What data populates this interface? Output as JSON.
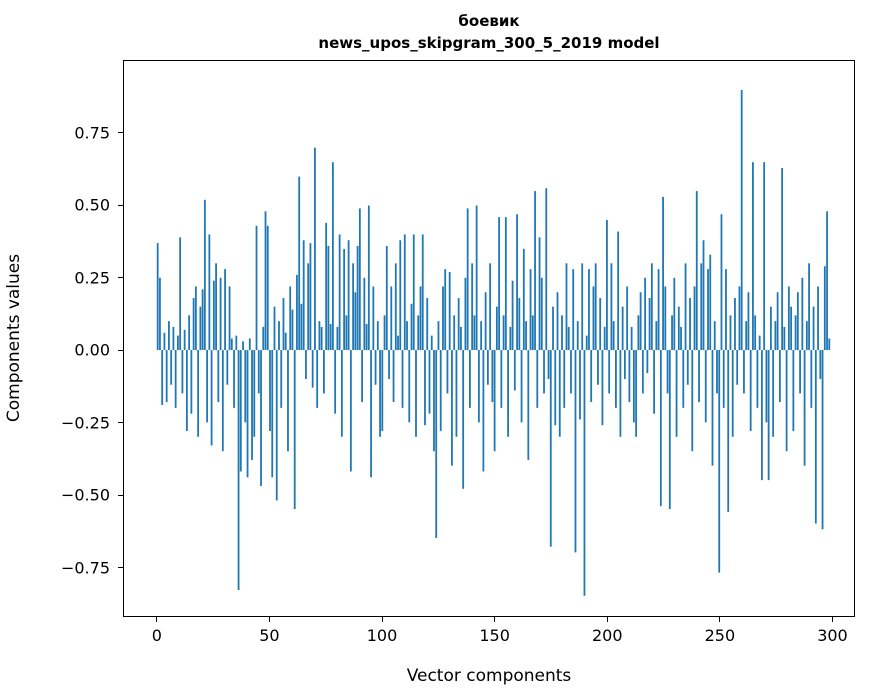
{
  "chart_data": {
    "type": "bar",
    "title_lines": [
      "боевик",
      "news_upos_skipgram_300_5_2019 model"
    ],
    "xlabel": "Vector components",
    "ylabel": "Components values",
    "bar_color": "#1f77b4",
    "grid": false,
    "legend": null,
    "n_components": 300,
    "xlim": [
      -15,
      310
    ],
    "ylim": [
      -0.92,
      1.0
    ],
    "xticks": [
      0,
      50,
      100,
      150,
      200,
      250,
      300
    ],
    "xtick_labels": [
      "0",
      "50",
      "100",
      "150",
      "200",
      "250",
      "300"
    ],
    "yticks": [
      0.75,
      0.5,
      0.25,
      0.0,
      -0.25,
      -0.5,
      -0.75
    ],
    "ytick_labels": [
      "0.75",
      "0.50",
      "0.25",
      "0.00",
      "−0.25",
      "−0.50",
      "−0.75"
    ],
    "values": [
      0.37,
      0.25,
      -0.19,
      0.06,
      -0.18,
      0.1,
      -0.12,
      0.08,
      -0.2,
      0.05,
      0.39,
      -0.15,
      0.07,
      -0.28,
      0.12,
      -0.22,
      0.18,
      0.22,
      -0.3,
      0.15,
      0.21,
      0.52,
      -0.25,
      0.4,
      -0.33,
      0.24,
      0.3,
      -0.18,
      0.25,
      -0.35,
      0.28,
      -0.12,
      0.22,
      0.04,
      -0.2,
      0.05,
      -0.83,
      -0.42,
      0.03,
      -0.25,
      -0.44,
      0.04,
      -0.38,
      -0.3,
      0.43,
      -0.15,
      -0.47,
      0.08,
      0.48,
      0.43,
      -0.28,
      -0.44,
      0.15,
      -0.52,
      0.1,
      -0.2,
      0.18,
      0.06,
      -0.35,
      0.22,
      0.14,
      -0.55,
      0.26,
      0.6,
      0.16,
      0.38,
      -0.1,
      0.3,
      0.37,
      -0.13,
      0.7,
      -0.2,
      0.1,
      0.08,
      -0.15,
      0.44,
      0.36,
      0.09,
      0.65,
      -0.22,
      0.08,
      0.4,
      -0.3,
      0.35,
      0.12,
      0.38,
      -0.42,
      0.3,
      0.2,
      0.36,
      0.49,
      -0.18,
      0.25,
      0.09,
      0.5,
      -0.44,
      0.22,
      -0.12,
      0.1,
      -0.3,
      -0.28,
      0.12,
      0.36,
      -0.1,
      0.22,
      -0.18,
      0.3,
      0.05,
      0.38,
      -0.2,
      0.4,
      0.1,
      -0.25,
      0.16,
      0.4,
      -0.3,
      0.12,
      0.22,
      0.4,
      -0.26,
      0.18,
      -0.22,
      0.05,
      -0.35,
      -0.65,
      0.1,
      -0.28,
      0.22,
      0.28,
      -0.15,
      0.27,
      -0.4,
      0.12,
      -0.3,
      0.18,
      0.08,
      -0.48,
      0.25,
      0.49,
      -0.2,
      0.3,
      0.12,
      0.5,
      -0.25,
      0.1,
      -0.42,
      0.2,
      -0.12,
      0.3,
      -0.18,
      -0.35,
      0.15,
      0.46,
      -0.2,
      0.12,
      0.46,
      -0.3,
      0.08,
      0.24,
      -0.14,
      0.47,
      0.18,
      -0.25,
      0.35,
      0.1,
      -0.38,
      0.28,
      0.12,
      0.55,
      -0.2,
      0.39,
      0.25,
      -0.15,
      0.56,
      -0.1,
      -0.68,
      0.15,
      -0.26,
      0.2,
      -0.3,
      0.12,
      -0.2,
      0.3,
      0.08,
      -0.15,
      0.28,
      -0.7,
      0.1,
      -0.24,
      0.3,
      -0.85,
      0.05,
      0.28,
      -0.18,
      0.22,
      0.3,
      -0.12,
      0.18,
      -0.26,
      0.08,
      0.45,
      -0.15,
      0.3,
      0.1,
      -0.2,
      0.41,
      -0.3,
      0.15,
      -0.1,
      0.22,
      -0.18,
      0.08,
      -0.25,
      -0.3,
      0.12,
      0.2,
      -0.15,
      0.25,
      -0.08,
      0.18,
      0.3,
      -0.22,
      0.1,
      0.28,
      -0.54,
      0.53,
      0.22,
      -0.15,
      -0.55,
      0.12,
      0.25,
      -0.3,
      0.15,
      0.08,
      -0.2,
      0.3,
      -0.12,
      0.18,
      -0.35,
      0.22,
      0.55,
      -0.18,
      0.3,
      0.38,
      -0.25,
      0.28,
      0.33,
      -0.4,
      0.1,
      -0.15,
      -0.77,
      0.47,
      -0.2,
      0.28,
      -0.56,
      0.12,
      -0.3,
      0.18,
      -0.12,
      0.22,
      0.9,
      -0.15,
      0.1,
      0.2,
      -0.28,
      0.65,
      0.12,
      -0.2,
      0.05,
      -0.45,
      0.65,
      -0.25,
      -0.45,
      0.15,
      -0.3,
      0.1,
      0.2,
      -0.18,
      0.63,
      0.08,
      -0.35,
      0.22,
      0.15,
      -0.28,
      0.12,
      0.2,
      -0.15,
      0.25,
      -0.4,
      0.1,
      0.3,
      -0.2,
      0.15,
      -0.6,
      0.22,
      -0.1,
      -0.62,
      0.29,
      0.48,
      0.04
    ]
  }
}
